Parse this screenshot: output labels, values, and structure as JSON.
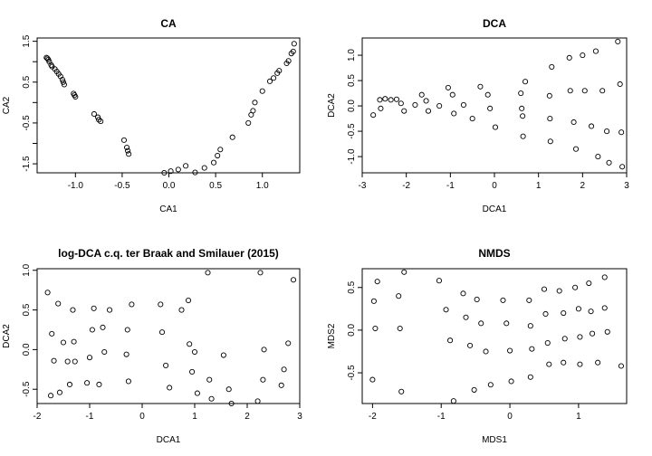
{
  "chart_data": [
    {
      "type": "scatter",
      "title": "CA",
      "xlabel": "CA1",
      "ylabel": "CA2",
      "xlim": [
        -1.41,
        1.4
      ],
      "ylim": [
        -1.72,
        1.58
      ],
      "xticks": [
        -1.0,
        -0.5,
        0.0,
        0.5,
        1.0
      ],
      "xtick_labels": [
        "-1.0",
        "-0.5",
        "0.0",
        "0.5",
        "1.0"
      ],
      "yticks": [
        -1.5,
        -0.5,
        0.5,
        1.5
      ],
      "ytick_labels": [
        "-1.5",
        "-0.5",
        "0.5",
        "1.5"
      ],
      "yticks_minor": [
        -1.0,
        0.0,
        1.0
      ],
      "ytick_minor_labels": [
        "",
        "",
        ""
      ],
      "grid": false,
      "points": [
        [
          -1.31,
          1.1
        ],
        [
          -1.3,
          1.08
        ],
        [
          -1.29,
          1.05
        ],
        [
          -1.28,
          1.0
        ],
        [
          -1.26,
          0.92
        ],
        [
          -1.25,
          0.88
        ],
        [
          -1.22,
          0.82
        ],
        [
          -1.2,
          0.76
        ],
        [
          -1.18,
          0.7
        ],
        [
          -1.16,
          0.64
        ],
        [
          -1.14,
          0.56
        ],
        [
          -1.13,
          0.5
        ],
        [
          -1.12,
          0.44
        ],
        [
          -1.02,
          0.22
        ],
        [
          -1.01,
          0.18
        ],
        [
          -1.0,
          0.14
        ],
        [
          -0.8,
          -0.28
        ],
        [
          -0.76,
          -0.36
        ],
        [
          -0.75,
          -0.42
        ],
        [
          -0.73,
          -0.46
        ],
        [
          -0.48,
          -0.92
        ],
        [
          -0.45,
          -1.1
        ],
        [
          -0.44,
          -1.18
        ],
        [
          -0.43,
          -1.26
        ],
        [
          -0.05,
          -1.72
        ],
        [
          0.02,
          -1.68
        ],
        [
          0.1,
          -1.64
        ],
        [
          0.18,
          -1.55
        ],
        [
          0.28,
          -1.71
        ],
        [
          0.38,
          -1.6
        ],
        [
          0.48,
          -1.47
        ],
        [
          0.52,
          -1.3
        ],
        [
          0.55,
          -1.15
        ],
        [
          0.68,
          -0.85
        ],
        [
          0.85,
          -0.5
        ],
        [
          0.88,
          -0.3
        ],
        [
          0.9,
          -0.2
        ],
        [
          0.92,
          0.0
        ],
        [
          1.0,
          0.28
        ],
        [
          1.08,
          0.52
        ],
        [
          1.12,
          0.6
        ],
        [
          1.16,
          0.72
        ],
        [
          1.18,
          0.78
        ],
        [
          1.26,
          0.96
        ],
        [
          1.28,
          1.02
        ],
        [
          1.31,
          1.2
        ],
        [
          1.33,
          1.25
        ],
        [
          1.34,
          1.44
        ]
      ]
    },
    {
      "type": "scatter",
      "title": "DCA",
      "xlabel": "DCA1",
      "ylabel": "DCA2",
      "xlim": [
        -3.0,
        3.0
      ],
      "ylim": [
        -1.32,
        1.34
      ],
      "xticks": [
        -3,
        -2,
        -1,
        0,
        1,
        2,
        3
      ],
      "xtick_labels": [
        "-3",
        "-2",
        "-1",
        "0",
        "1",
        "2",
        "3"
      ],
      "yticks": [
        -1.0,
        -0.5,
        0.0,
        0.5,
        1.0
      ],
      "ytick_labels": [
        "-1.0",
        "-0.5",
        "0.0",
        "0.5",
        "1.0"
      ],
      "grid": false,
      "points": [
        [
          -2.75,
          -0.18
        ],
        [
          -2.6,
          0.12
        ],
        [
          -2.58,
          -0.05
        ],
        [
          -2.48,
          0.14
        ],
        [
          -2.35,
          0.12
        ],
        [
          -2.22,
          0.13
        ],
        [
          -2.12,
          0.05
        ],
        [
          -2.05,
          -0.1
        ],
        [
          -1.8,
          0.02
        ],
        [
          -1.65,
          0.22
        ],
        [
          -1.55,
          0.1
        ],
        [
          -1.5,
          -0.1
        ],
        [
          -1.25,
          0.0
        ],
        [
          -1.05,
          0.36
        ],
        [
          -0.95,
          0.22
        ],
        [
          -0.92,
          -0.15
        ],
        [
          -0.7,
          0.02
        ],
        [
          -0.5,
          -0.25
        ],
        [
          -0.32,
          0.38
        ],
        [
          -0.15,
          0.22
        ],
        [
          -0.1,
          -0.05
        ],
        [
          0.02,
          -0.42
        ],
        [
          0.6,
          0.25
        ],
        [
          0.62,
          -0.05
        ],
        [
          0.64,
          -0.2
        ],
        [
          0.65,
          -0.6
        ],
        [
          0.7,
          0.48
        ],
        [
          1.25,
          0.2
        ],
        [
          1.26,
          -0.25
        ],
        [
          1.27,
          -0.7
        ],
        [
          1.3,
          0.77
        ],
        [
          1.7,
          0.95
        ],
        [
          1.72,
          0.3
        ],
        [
          1.8,
          -0.32
        ],
        [
          1.85,
          -0.85
        ],
        [
          2.0,
          1.0
        ],
        [
          2.05,
          0.3
        ],
        [
          2.2,
          -0.4
        ],
        [
          2.3,
          1.08
        ],
        [
          2.35,
          -1.0
        ],
        [
          2.45,
          0.3
        ],
        [
          2.55,
          -0.5
        ],
        [
          2.6,
          -1.12
        ],
        [
          2.8,
          1.27
        ],
        [
          2.85,
          0.43
        ],
        [
          2.88,
          -0.52
        ],
        [
          2.9,
          -1.2
        ]
      ]
    },
    {
      "type": "scatter",
      "title": "log-DCA c.q. ter Braak and Smilauer (2015)",
      "xlabel": "DCA1",
      "ylabel": "DCA2",
      "xlim": [
        -2.0,
        3.0
      ],
      "ylim": [
        -0.68,
        1.02
      ],
      "xticks": [
        -2,
        -1,
        0,
        1,
        2,
        3
      ],
      "xtick_labels": [
        "-2",
        "-1",
        "0",
        "1",
        "2",
        "3"
      ],
      "yticks": [
        -0.5,
        0.0,
        0.5,
        1.0
      ],
      "ytick_labels": [
        "-0.5",
        "0.0",
        "0.5",
        "1.0"
      ],
      "grid": false,
      "points": [
        [
          -1.8,
          0.72
        ],
        [
          -1.74,
          -0.58
        ],
        [
          -1.72,
          0.2
        ],
        [
          -1.68,
          -0.14
        ],
        [
          -1.6,
          0.58
        ],
        [
          -1.57,
          -0.54
        ],
        [
          -1.5,
          0.09
        ],
        [
          -1.42,
          -0.15
        ],
        [
          -1.38,
          -0.44
        ],
        [
          -1.32,
          0.5
        ],
        [
          -1.3,
          0.1
        ],
        [
          -1.28,
          -0.15
        ],
        [
          -1.05,
          -0.42
        ],
        [
          -1.0,
          -0.1
        ],
        [
          -0.95,
          0.25
        ],
        [
          -0.92,
          0.52
        ],
        [
          -0.82,
          -0.44
        ],
        [
          -0.75,
          0.28
        ],
        [
          -0.72,
          -0.03
        ],
        [
          -0.62,
          0.5
        ],
        [
          -0.3,
          -0.06
        ],
        [
          -0.28,
          0.25
        ],
        [
          -0.26,
          -0.4
        ],
        [
          -0.2,
          0.57
        ],
        [
          0.35,
          0.57
        ],
        [
          0.38,
          0.22
        ],
        [
          0.45,
          -0.2
        ],
        [
          0.52,
          -0.48
        ],
        [
          0.75,
          0.5
        ],
        [
          0.88,
          0.62
        ],
        [
          0.9,
          0.07
        ],
        [
          0.95,
          -0.28
        ],
        [
          1.0,
          -0.03
        ],
        [
          1.05,
          -0.55
        ],
        [
          1.25,
          0.97
        ],
        [
          1.28,
          -0.38
        ],
        [
          1.32,
          -0.62
        ],
        [
          1.55,
          -0.07
        ],
        [
          1.65,
          -0.5
        ],
        [
          1.7,
          -0.68
        ],
        [
          2.2,
          -0.65
        ],
        [
          2.25,
          0.97
        ],
        [
          2.3,
          -0.38
        ],
        [
          2.32,
          0.0
        ],
        [
          2.65,
          -0.45
        ],
        [
          2.7,
          -0.25
        ],
        [
          2.78,
          0.08
        ],
        [
          2.88,
          0.88
        ]
      ]
    },
    {
      "type": "scatter",
      "title": "NMDS",
      "xlabel": "MDS1",
      "ylabel": "MDS2",
      "xlim": [
        -2.15,
        1.7
      ],
      "ylim": [
        -0.86,
        0.72
      ],
      "xticks": [
        -2,
        -1,
        0,
        1
      ],
      "xtick_labels": [
        "-2",
        "-1",
        "0",
        "1"
      ],
      "yticks": [
        -0.5,
        0.0,
        0.5
      ],
      "ytick_labels": [
        "-0.5",
        "0.0",
        "0.5"
      ],
      "grid": false,
      "points": [
        [
          -2.0,
          -0.58
        ],
        [
          -1.98,
          0.34
        ],
        [
          -1.96,
          0.02
        ],
        [
          -1.93,
          0.57
        ],
        [
          -1.62,
          0.4
        ],
        [
          -1.6,
          0.02
        ],
        [
          -1.58,
          -0.72
        ],
        [
          -1.54,
          0.68
        ],
        [
          -1.03,
          0.58
        ],
        [
          -0.93,
          0.24
        ],
        [
          -0.87,
          -0.12
        ],
        [
          -0.82,
          -0.83
        ],
        [
          -0.68,
          0.43
        ],
        [
          -0.64,
          0.15
        ],
        [
          -0.58,
          -0.18
        ],
        [
          -0.52,
          -0.7
        ],
        [
          -0.48,
          0.36
        ],
        [
          -0.42,
          0.08
        ],
        [
          -0.35,
          -0.25
        ],
        [
          -0.28,
          -0.64
        ],
        [
          -0.1,
          0.35
        ],
        [
          -0.05,
          0.08
        ],
        [
          0.0,
          -0.24
        ],
        [
          0.02,
          -0.6
        ],
        [
          0.28,
          0.35
        ],
        [
          0.3,
          0.05
        ],
        [
          0.32,
          -0.22
        ],
        [
          0.3,
          -0.55
        ],
        [
          0.5,
          0.48
        ],
        [
          0.52,
          0.19
        ],
        [
          0.55,
          -0.15
        ],
        [
          0.57,
          -0.4
        ],
        [
          0.72,
          0.46
        ],
        [
          0.78,
          0.2
        ],
        [
          0.8,
          -0.1
        ],
        [
          0.78,
          -0.38
        ],
        [
          0.95,
          0.5
        ],
        [
          1.0,
          0.25
        ],
        [
          1.02,
          -0.08
        ],
        [
          1.02,
          -0.4
        ],
        [
          1.15,
          0.55
        ],
        [
          1.18,
          0.22
        ],
        [
          1.2,
          -0.04
        ],
        [
          1.28,
          -0.38
        ],
        [
          1.38,
          0.62
        ],
        [
          1.38,
          0.26
        ],
        [
          1.42,
          -0.02
        ],
        [
          1.62,
          -0.42
        ]
      ]
    }
  ]
}
